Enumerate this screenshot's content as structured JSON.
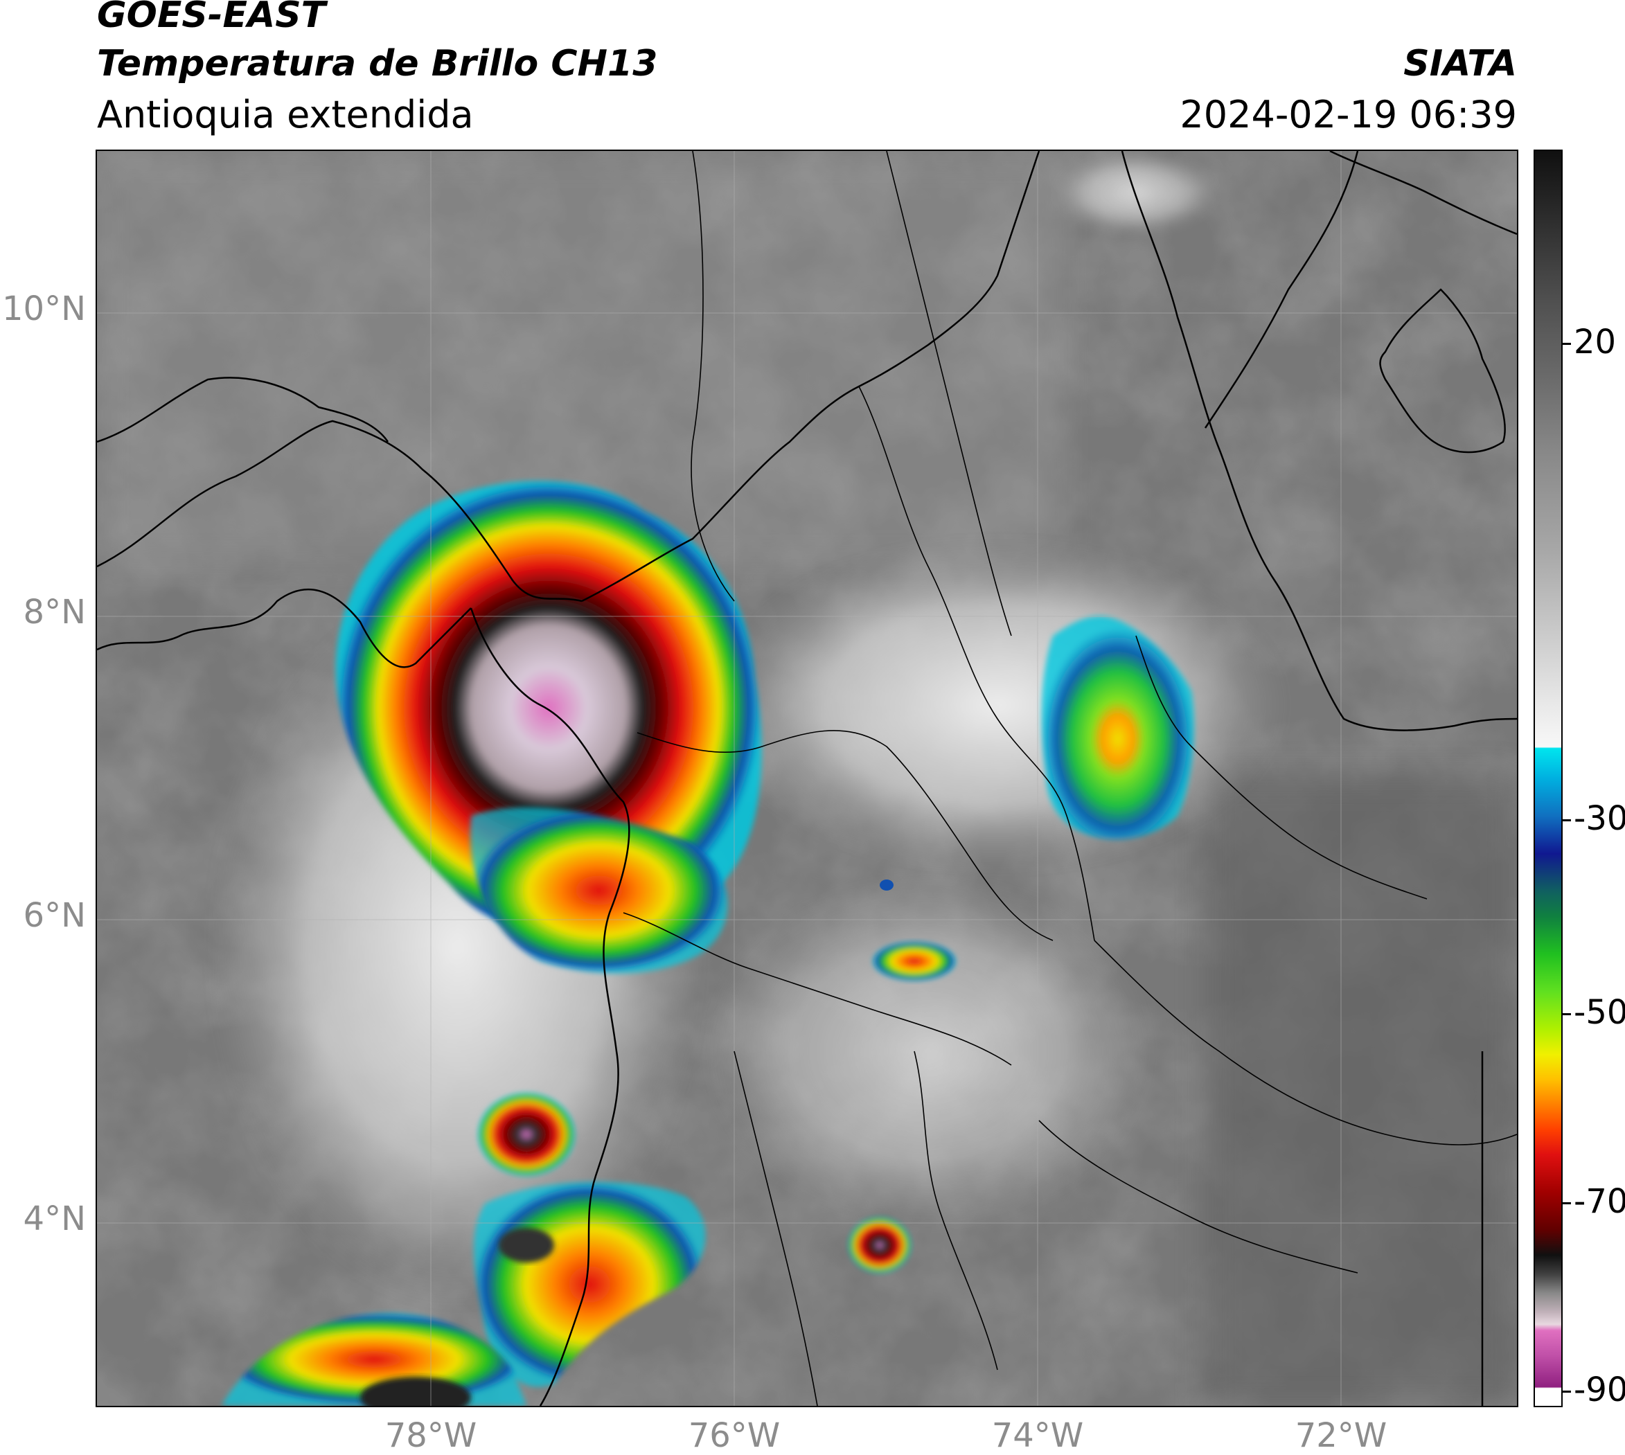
{
  "header": {
    "satellite": "GOES-EAST",
    "product": "Temperatura de Brillo CH13",
    "region": "Antioquia extendida",
    "org": "SIATA",
    "datetime": "2024-02-19 06:39"
  },
  "axes": {
    "y_ticks": [
      "10°N",
      "8°N",
      "6°N",
      "4°N"
    ],
    "x_ticks": [
      "78°W",
      "76°W",
      "74°W",
      "72°W"
    ]
  },
  "colorbar": {
    "labels": [
      "20",
      "-30",
      "-50",
      "-70",
      "-90"
    ]
  },
  "colors": {
    "background_gray": "#7a7a7a",
    "cold_white": "#f0f0f0",
    "cyan": "#00e5ee",
    "blue": "#1050b0",
    "green": "#20c020",
    "yellow": "#f0f000",
    "orange": "#ff8000",
    "red": "#e01010",
    "dark_red": "#600000",
    "black": "#101010",
    "pink": "#e070c0"
  }
}
